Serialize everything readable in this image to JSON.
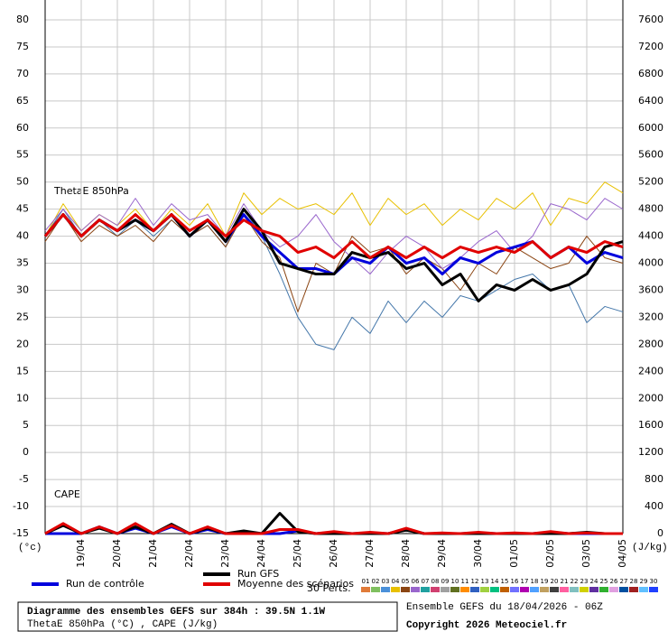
{
  "chart_data": {
    "type": "line",
    "label_theta": "ThetaE 850hPa",
    "label_cape": "CAPE",
    "y_unit": "(°c)",
    "y2_unit": "(J/kg)",
    "perts_label": "30 Perts.",
    "pert_labels": [
      "01",
      "02",
      "03",
      "04",
      "05",
      "06",
      "07",
      "08",
      "09",
      "10",
      "11",
      "12",
      "13",
      "14",
      "15",
      "16",
      "17",
      "18",
      "19",
      "20",
      "21",
      "22",
      "23",
      "24",
      "25",
      "26",
      "27",
      "28",
      "29",
      "30"
    ],
    "pert_colors": [
      "#e07b39",
      "#7fbf5f",
      "#4a90d9",
      "#e8c000",
      "#8b4513",
      "#9966cc",
      "#20a0a0",
      "#d04070",
      "#a0a0a0",
      "#607020",
      "#ff8c00",
      "#3060c0",
      "#a0d040",
      "#00c080",
      "#c06000",
      "#7070ff",
      "#b000b0",
      "#50a0ff",
      "#c0a060",
      "#404040",
      "#ff60a0",
      "#80c0c0",
      "#d0d000",
      "#6030a0",
      "#30b030",
      "#e0a0e0",
      "#0050a0",
      "#a02020",
      "#60c0ff",
      "#2040ff"
    ],
    "info_title": "Diagramme des ensembles GEFS sur 384h : 39.5N 1.1W",
    "info_subtitle": "ThetaE 850hPa (°C) , CAPE (J/kg)",
    "run_info": "Ensemble GEFS du 18/04/2026 - 06Z",
    "copyright": "Copyright 2026 Meteociel.fr",
    "x": [
      0,
      12,
      24,
      36,
      48,
      60,
      72,
      84,
      96,
      108,
      120,
      132,
      144,
      156,
      168,
      180,
      192,
      204,
      216,
      228,
      240,
      252,
      264,
      276,
      288,
      300,
      312,
      324,
      336,
      348,
      360,
      372,
      384
    ],
    "xlim": [
      0,
      384
    ],
    "xticks": [
      {
        "value": 24,
        "label": "19/04"
      },
      {
        "value": 48,
        "label": "20/04"
      },
      {
        "value": 72,
        "label": "21/04"
      },
      {
        "value": 96,
        "label": "22/04"
      },
      {
        "value": 120,
        "label": "23/04"
      },
      {
        "value": 144,
        "label": "24/04"
      },
      {
        "value": 168,
        "label": "25/04"
      },
      {
        "value": 192,
        "label": "26/04"
      },
      {
        "value": 216,
        "label": "27/04"
      },
      {
        "value": 240,
        "label": "28/04"
      },
      {
        "value": 264,
        "label": "29/04"
      },
      {
        "value": 288,
        "label": "30/04"
      },
      {
        "value": 312,
        "label": "01/05"
      },
      {
        "value": 336,
        "label": "02/05"
      },
      {
        "value": 360,
        "label": "03/05"
      },
      {
        "value": 384,
        "label": "04/05"
      }
    ],
    "ylim": [
      -15,
      80
    ],
    "yticks": [
      -15,
      -10,
      -5,
      0,
      5,
      10,
      15,
      20,
      25,
      30,
      35,
      40,
      45,
      50,
      55,
      60,
      65,
      70,
      75,
      80
    ],
    "y2lim": [
      0,
      7600
    ],
    "y2ticks": [
      0,
      400,
      800,
      1200,
      1600,
      2000,
      2400,
      2800,
      3200,
      3600,
      4000,
      4400,
      4800,
      5200,
      5600,
      6000,
      6400,
      6800,
      7200,
      7600
    ],
    "grid": true,
    "series": [
      {
        "color": "#4477aa",
        "width": 1,
        "values": [
          40,
          45,
          40,
          43,
          40,
          43,
          40,
          43,
          40,
          42,
          38,
          45,
          40,
          33,
          25,
          20,
          19,
          25,
          22,
          28,
          24,
          28,
          25,
          29,
          28,
          30,
          32,
          33,
          30,
          31,
          24,
          27,
          26
        ]
      },
      {
        "color": "#e8c000",
        "width": 1,
        "values": [
          40,
          46,
          41,
          44,
          42,
          45,
          41,
          45,
          42,
          46,
          40,
          48,
          44,
          47,
          45,
          46,
          44,
          48,
          42,
          47,
          44,
          46,
          42,
          45,
          43,
          47,
          45,
          48,
          42,
          47,
          46,
          50,
          48
        ]
      },
      {
        "color": "#8b4513",
        "width": 1,
        "values": [
          39,
          44,
          39,
          42,
          40,
          42,
          39,
          43,
          40,
          42,
          38,
          44,
          39,
          36,
          26,
          35,
          33,
          40,
          37,
          38,
          33,
          36,
          34,
          30,
          35,
          33,
          38,
          36,
          34,
          35,
          40,
          36,
          35
        ]
      },
      {
        "color": "#9966cc",
        "width": 1,
        "values": [
          41,
          45,
          41,
          44,
          42,
          47,
          42,
          46,
          43,
          44,
          40,
          46,
          41,
          38,
          40,
          44,
          39,
          36,
          33,
          37,
          40,
          38,
          34,
          36,
          39,
          41,
          37,
          40,
          46,
          45,
          43,
          47,
          45
        ]
      },
      {
        "color": "#0000dd",
        "width": 3,
        "values": [
          0,
          0,
          0,
          100,
          0,
          80,
          0,
          100,
          0,
          60,
          0,
          20,
          0,
          0,
          40,
          0,
          20,
          0,
          10,
          0,
          60,
          0,
          0,
          0,
          10,
          0,
          0,
          0,
          20,
          0,
          0,
          0,
          0
        ],
        "axis": "y2"
      },
      {
        "color": "#000000",
        "width": 3,
        "values": [
          0,
          120,
          0,
          80,
          0,
          100,
          0,
          140,
          0,
          80,
          0,
          40,
          0,
          300,
          30,
          0,
          0,
          0,
          0,
          0,
          50,
          0,
          0,
          0,
          0,
          0,
          0,
          0,
          0,
          0,
          20,
          0,
          0
        ],
        "axis": "y2"
      },
      {
        "color": "#e00000",
        "width": 3,
        "values": [
          0,
          150,
          0,
          100,
          0,
          150,
          0,
          120,
          0,
          100,
          0,
          0,
          0,
          60,
          60,
          0,
          30,
          0,
          20,
          0,
          80,
          0,
          10,
          0,
          20,
          0,
          10,
          0,
          30,
          0,
          10,
          0,
          0
        ],
        "axis": "y2"
      },
      {
        "name": "Run de contrôle",
        "color": "#0000dd",
        "width": 3,
        "values": [
          40,
          44,
          40,
          43,
          41,
          43,
          41,
          44,
          40,
          43,
          39,
          44,
          40,
          37,
          34,
          34,
          33,
          36,
          35,
          38,
          35,
          36,
          33,
          36,
          35,
          37,
          38,
          39,
          36,
          38,
          35,
          37,
          36
        ]
      },
      {
        "name": "Run GFS",
        "color": "#000000",
        "width": 3,
        "values": [
          40,
          44,
          40,
          43,
          41,
          43,
          41,
          44,
          40,
          43,
          39,
          45,
          41,
          35,
          34,
          33,
          33,
          37,
          36,
          37,
          34,
          35,
          31,
          33,
          28,
          31,
          30,
          32,
          30,
          31,
          33,
          38,
          39
        ]
      },
      {
        "name": "Moyenne des scénarios",
        "color": "#e00000",
        "width": 3,
        "values": [
          40,
          44,
          40,
          43,
          41,
          44,
          41,
          44,
          41,
          43,
          40,
          43,
          41,
          40,
          37,
          38,
          36,
          39,
          36,
          38,
          36,
          38,
          36,
          38,
          37,
          38,
          37,
          39,
          36,
          38,
          37,
          39,
          38
        ]
      }
    ]
  }
}
